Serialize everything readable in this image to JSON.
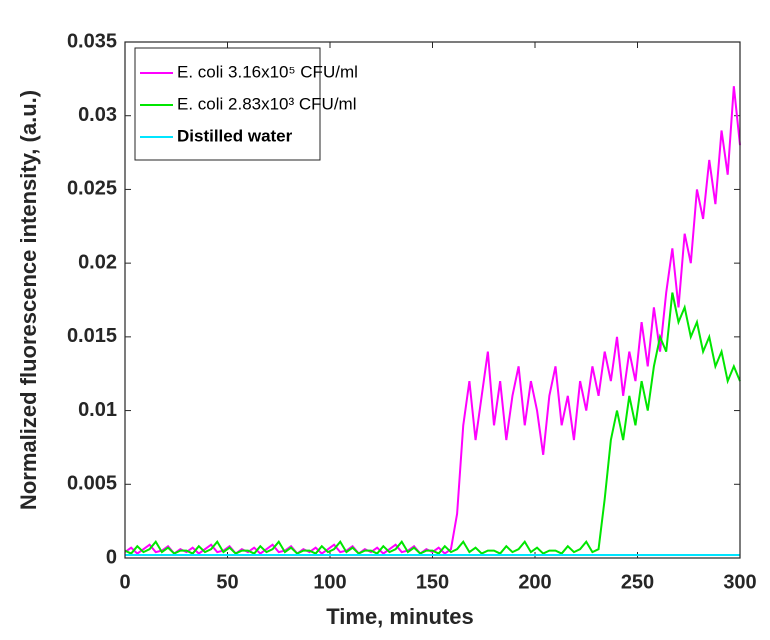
{
  "chart_data": {
    "type": "line",
    "x_label": "Time, minutes",
    "y_label": "Normalized fluorescence intensity, (a.u.)",
    "x": [
      0,
      3,
      6,
      9,
      12,
      15,
      18,
      21,
      24,
      27,
      30,
      33,
      36,
      39,
      42,
      45,
      48,
      51,
      54,
      57,
      60,
      63,
      66,
      69,
      72,
      75,
      78,
      81,
      84,
      87,
      90,
      93,
      96,
      99,
      102,
      105,
      108,
      111,
      114,
      117,
      120,
      123,
      126,
      129,
      132,
      135,
      138,
      141,
      144,
      147,
      150,
      153,
      156,
      159,
      162,
      165,
      168,
      171,
      174,
      177,
      180,
      183,
      186,
      189,
      192,
      195,
      198,
      201,
      204,
      207,
      210,
      213,
      216,
      219,
      222,
      225,
      228,
      231,
      234,
      237,
      240,
      243,
      246,
      249,
      252,
      255,
      258,
      261,
      264,
      267,
      270,
      273,
      276,
      279,
      282,
      285,
      288,
      291,
      294,
      297,
      300
    ],
    "series": [
      {
        "name": "E. coli 3.16x10⁵ CFU/ml",
        "color": "#ff00ff",
        "values": [
          0.0004,
          0.0007,
          0.0003,
          0.0006,
          0.0009,
          0.0004,
          0.0005,
          0.0008,
          0.0003,
          0.0006,
          0.0004,
          0.0007,
          0.0003,
          0.0006,
          0.0009,
          0.0004,
          0.0005,
          0.0008,
          0.0003,
          0.0006,
          0.0004,
          0.0007,
          0.0003,
          0.0006,
          0.0009,
          0.0004,
          0.0005,
          0.0008,
          0.0003,
          0.0006,
          0.0004,
          0.0007,
          0.0003,
          0.0006,
          0.0009,
          0.0004,
          0.0005,
          0.0008,
          0.0003,
          0.0006,
          0.0004,
          0.0007,
          0.0003,
          0.0006,
          0.0009,
          0.0004,
          0.0005,
          0.0008,
          0.0003,
          0.0006,
          0.0004,
          0.0007,
          0.0003,
          0.0006,
          0.003,
          0.009,
          0.012,
          0.008,
          0.011,
          0.014,
          0.009,
          0.012,
          0.008,
          0.011,
          0.013,
          0.009,
          0.012,
          0.01,
          0.007,
          0.011,
          0.013,
          0.009,
          0.011,
          0.008,
          0.012,
          0.01,
          0.013,
          0.011,
          0.014,
          0.012,
          0.015,
          0.011,
          0.014,
          0.012,
          0.016,
          0.013,
          0.017,
          0.014,
          0.018,
          0.021,
          0.017,
          0.022,
          0.02,
          0.025,
          0.023,
          0.027,
          0.024,
          0.029,
          0.026,
          0.032,
          0.028
        ]
      },
      {
        "name": "E. coli 2.83x10³ CFU/ml",
        "color": "#00e600",
        "values": [
          0.0005,
          0.0003,
          0.0008,
          0.0004,
          0.0006,
          0.0011,
          0.0004,
          0.0007,
          0.0003,
          0.0005,
          0.0005,
          0.0003,
          0.0008,
          0.0004,
          0.0006,
          0.0011,
          0.0004,
          0.0007,
          0.0003,
          0.0005,
          0.0005,
          0.0003,
          0.0008,
          0.0004,
          0.0006,
          0.0011,
          0.0004,
          0.0007,
          0.0003,
          0.0005,
          0.0005,
          0.0003,
          0.0008,
          0.0004,
          0.0006,
          0.0011,
          0.0004,
          0.0007,
          0.0003,
          0.0005,
          0.0005,
          0.0003,
          0.0008,
          0.0004,
          0.0006,
          0.0011,
          0.0004,
          0.0007,
          0.0003,
          0.0005,
          0.0005,
          0.0003,
          0.0008,
          0.0004,
          0.0006,
          0.0011,
          0.0004,
          0.0007,
          0.0003,
          0.0005,
          0.0005,
          0.0003,
          0.0008,
          0.0004,
          0.0006,
          0.0011,
          0.0004,
          0.0007,
          0.0003,
          0.0005,
          0.0005,
          0.0003,
          0.0008,
          0.0004,
          0.0006,
          0.0011,
          0.0004,
          0.0006,
          0.004,
          0.008,
          0.01,
          0.008,
          0.011,
          0.009,
          0.012,
          0.01,
          0.013,
          0.015,
          0.014,
          0.018,
          0.016,
          0.017,
          0.015,
          0.016,
          0.014,
          0.015,
          0.013,
          0.014,
          0.012,
          0.013,
          0.012
        ]
      },
      {
        "name": "Distilled water",
        "color": "#00e5ff",
        "values": [
          0.0002,
          0.0002,
          0.0002,
          0.0002,
          0.0002,
          0.0002,
          0.0002,
          0.0002,
          0.0002,
          0.0002,
          0.0002,
          0.0002,
          0.0002,
          0.0002,
          0.0002,
          0.0002,
          0.0002,
          0.0002,
          0.0002,
          0.0002,
          0.0002,
          0.0002,
          0.0002,
          0.0002,
          0.0002,
          0.0002,
          0.0002,
          0.0002,
          0.0002,
          0.0002,
          0.0002,
          0.0002,
          0.0002,
          0.0002,
          0.0002,
          0.0002,
          0.0002,
          0.0002,
          0.0002,
          0.0002,
          0.0002,
          0.0002,
          0.0002,
          0.0002,
          0.0002,
          0.0002,
          0.0002,
          0.0002,
          0.0002,
          0.0002,
          0.0002,
          0.0002,
          0.0002,
          0.0002,
          0.0002,
          0.0002,
          0.0002,
          0.0002,
          0.0002,
          0.0002,
          0.0002,
          0.0002,
          0.0002,
          0.0002,
          0.0002,
          0.0002,
          0.0002,
          0.0002,
          0.0002,
          0.0002,
          0.0002,
          0.0002,
          0.0002,
          0.0002,
          0.0002,
          0.0002,
          0.0002,
          0.0002,
          0.0002,
          0.0002,
          0.0002,
          0.0002,
          0.0002,
          0.0002,
          0.0002,
          0.0002,
          0.0002,
          0.0002,
          0.0002,
          0.0002,
          0.0002,
          0.0002,
          0.0002,
          0.0002,
          0.0002,
          0.0002,
          0.0002,
          0.0002,
          0.0002,
          0.0002,
          0.0002
        ]
      }
    ],
    "xlim": [
      0,
      300
    ],
    "xticks": [
      0,
      50,
      100,
      150,
      200,
      250,
      300
    ],
    "ylim": [
      0,
      0.035
    ],
    "yticks": [
      0,
      0.005,
      0.01,
      0.015,
      0.02,
      0.025,
      0.03,
      0.035
    ],
    "grid": false,
    "legend": "upper left"
  }
}
